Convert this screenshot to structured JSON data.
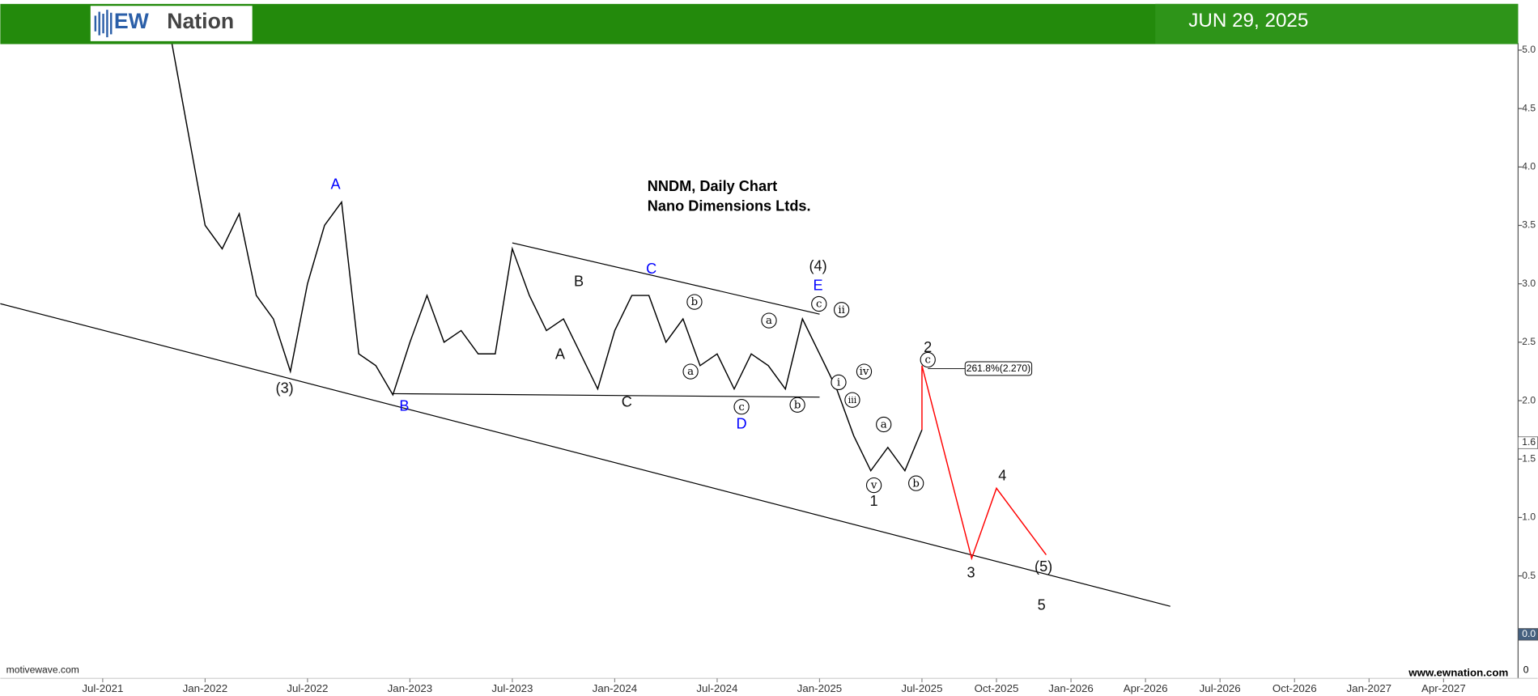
{
  "header": {
    "logo_mark": "EW",
    "logo_text": "Nation",
    "date": "JUN 29, 2025"
  },
  "chart_data": {
    "type": "line",
    "title": "NNDM, Daily Chart",
    "subtitle": "Nano Dimensions Ltds.",
    "xlim": [
      "2021-01",
      "2027-07"
    ],
    "ylim": [
      -0.36,
      5.06
    ],
    "xticks": [
      {
        "value": "2021-07",
        "label": "Jul-2021"
      },
      {
        "value": "2022-01",
        "label": "Jan-2022"
      },
      {
        "value": "2022-07",
        "label": "Jul-2022"
      },
      {
        "value": "2023-01",
        "label": "Jan-2023"
      },
      {
        "value": "2023-07",
        "label": "Jul-2023"
      },
      {
        "value": "2024-01",
        "label": "Jan-2024"
      },
      {
        "value": "2024-07",
        "label": "Jul-2024"
      },
      {
        "value": "2025-01",
        "label": "Jan-2025"
      },
      {
        "value": "2025-07",
        "label": "Jul-2025"
      },
      {
        "value": "2025-10",
        "label": "Oct-2025"
      },
      {
        "value": "2026-01",
        "label": "Jan-2026"
      },
      {
        "value": "2026-04",
        "label": "Apr-2026"
      },
      {
        "value": "2026-07",
        "label": "Jul-2026"
      },
      {
        "value": "2026-10",
        "label": "Oct-2026"
      },
      {
        "value": "2027-01",
        "label": "Jan-2027"
      },
      {
        "value": "2027-04",
        "label": "Apr-2027"
      }
    ],
    "yticks": [
      {
        "value": 0,
        "label": "0.0"
      },
      0.5,
      {
        "value": 1,
        "label": "1.0"
      },
      1.5,
      {
        "value": 2,
        "label": "2.0"
      },
      2.5,
      {
        "value": 3,
        "label": "3.0"
      },
      3.5,
      {
        "value": 4,
        "label": "4.0"
      },
      4.5,
      {
        "value": 5,
        "label": "5.0"
      }
    ],
    "price_markers": [
      {
        "value": 1.64,
        "label": "1.6"
      },
      {
        "value": 0,
        "label": "0.0"
      }
    ],
    "series": [
      {
        "color": "#000000",
        "x": [
          "2021-11",
          "2021-12",
          "2022-01",
          "2022-02",
          "2022-03",
          "2022-04",
          "2022-05",
          "2022-06",
          "2022-07",
          "2022-08",
          "2022-09",
          "2022-10",
          "2022-11",
          "2022-12",
          "2023-01",
          "2023-02",
          "2023-03",
          "2023-04",
          "2023-05",
          "2023-06",
          "2023-07",
          "2023-08",
          "2023-09",
          "2023-10",
          "2023-11",
          "2023-12",
          "2024-01",
          "2024-02",
          "2024-03",
          "2024-04",
          "2024-05",
          "2024-06",
          "2024-07",
          "2024-08",
          "2024-09",
          "2024-10",
          "2024-11",
          "2024-12",
          "2025-01",
          "2025-02",
          "2025-03",
          "2025-04",
          "2025-05",
          "2025-06",
          "2025-07"
        ],
        "values": [
          5.1,
          4.3,
          3.5,
          3.3,
          3.6,
          2.9,
          2.7,
          2.25,
          3.0,
          3.5,
          3.7,
          2.4,
          2.3,
          2.05,
          2.5,
          2.9,
          2.5,
          2.6,
          2.4,
          2.4,
          3.3,
          2.9,
          2.6,
          2.7,
          2.4,
          2.1,
          2.6,
          2.9,
          2.9,
          2.5,
          2.7,
          2.3,
          2.4,
          2.1,
          2.4,
          2.3,
          2.1,
          2.7,
          2.4,
          2.1,
          1.7,
          1.4,
          1.6,
          1.4,
          1.75
        ]
      },
      {
        "color": "#ff0000",
        "x": [
          "2025-07",
          "2025-07",
          "2025-09",
          "2025-10",
          "2025-12"
        ],
        "values": [
          1.75,
          2.3,
          0.65,
          1.25,
          0.68
        ]
      }
    ],
    "trendlines": [
      {
        "color": "#000000",
        "x": [
          "2021-01",
          "2026-05"
        ],
        "values": [
          2.83,
          0.24
        ]
      },
      {
        "color": "#000000",
        "x": [
          "2023-07",
          "2025-01"
        ],
        "values": [
          3.35,
          2.74
        ]
      },
      {
        "color": "#000000",
        "x": [
          "2022-12",
          "2025-01"
        ],
        "values": [
          2.06,
          2.03
        ]
      }
    ],
    "fib_label": "261.8%(2.270)",
    "wave_labels": [
      {
        "text": "A",
        "color": "#0000ff"
      },
      {
        "text": "(3)"
      },
      {
        "text": "B",
        "color": "#0000ff"
      },
      {
        "text": "A"
      },
      {
        "text": "B"
      },
      {
        "text": "C",
        "color": "#0000ff"
      },
      {
        "text": "C"
      },
      {
        "text": "(4)"
      },
      {
        "text": "E",
        "color": "#0000ff"
      },
      {
        "text": "c",
        "circled": true
      },
      {
        "text": "ii",
        "circled": true
      },
      {
        "text": "b",
        "circled": true
      },
      {
        "text": "a",
        "circled": true
      },
      {
        "text": "a",
        "circled": true
      },
      {
        "text": "c",
        "circled": true
      },
      {
        "text": "D",
        "color": "#0000ff"
      },
      {
        "text": "b",
        "circled": true
      },
      {
        "text": "i",
        "circled": true
      },
      {
        "text": "iii",
        "circled": true
      },
      {
        "text": "iv",
        "circled": true
      },
      {
        "text": "a",
        "circled": true
      },
      {
        "text": "v",
        "circled": true
      },
      {
        "text": "1"
      },
      {
        "text": "b",
        "circled": true
      },
      {
        "text": "2"
      },
      {
        "text": "c",
        "circled": true
      },
      {
        "text": "3"
      },
      {
        "text": "4"
      },
      {
        "text": "(5)"
      },
      {
        "text": "5"
      }
    ],
    "source_left": "motivewave.com",
    "source_right": "www.ewnation.com",
    "axis_corner": "0"
  }
}
